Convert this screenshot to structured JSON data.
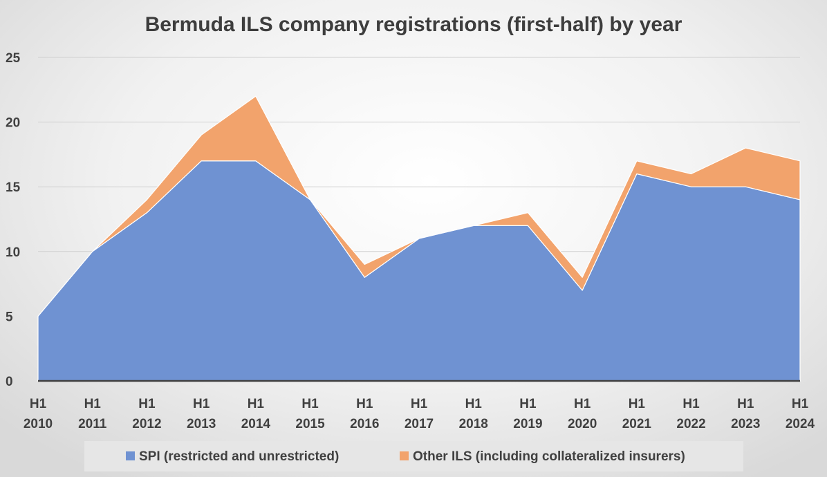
{
  "chart_data": {
    "type": "area",
    "stacked": true,
    "title": "Bermuda ILS company registrations (first-half) by year",
    "categories": [
      [
        "H1",
        "2010"
      ],
      [
        "H1",
        "2011"
      ],
      [
        "H1",
        "2012"
      ],
      [
        "H1",
        "2013"
      ],
      [
        "H1",
        "2014"
      ],
      [
        "H1",
        "2015"
      ],
      [
        "H1",
        "2016"
      ],
      [
        "H1",
        "2017"
      ],
      [
        "H1",
        "2018"
      ],
      [
        "H1",
        "2019"
      ],
      [
        "H1",
        "2020"
      ],
      [
        "H1",
        "2021"
      ],
      [
        "H1",
        "2022"
      ],
      [
        "H1",
        "2023"
      ],
      [
        "H1",
        "2024"
      ]
    ],
    "series": [
      {
        "name": "SPI (restricted and unrestricted)",
        "color": "#6f92d2",
        "values": [
          5,
          10,
          13,
          17,
          17,
          14,
          8,
          11,
          12,
          12,
          7,
          16,
          15,
          15,
          14
        ]
      },
      {
        "name": "Other ILS (including collateralized insurers)",
        "color": "#f2a36c",
        "values": [
          0,
          0,
          1,
          2,
          5,
          0,
          1,
          0,
          0,
          1,
          1,
          1,
          1,
          3,
          3
        ]
      }
    ],
    "ylim": [
      0,
      25
    ],
    "yticks": [
      0,
      5,
      10,
      15,
      20,
      25
    ],
    "grid": true,
    "legend": "bottom",
    "xlabel": "",
    "ylabel": ""
  }
}
